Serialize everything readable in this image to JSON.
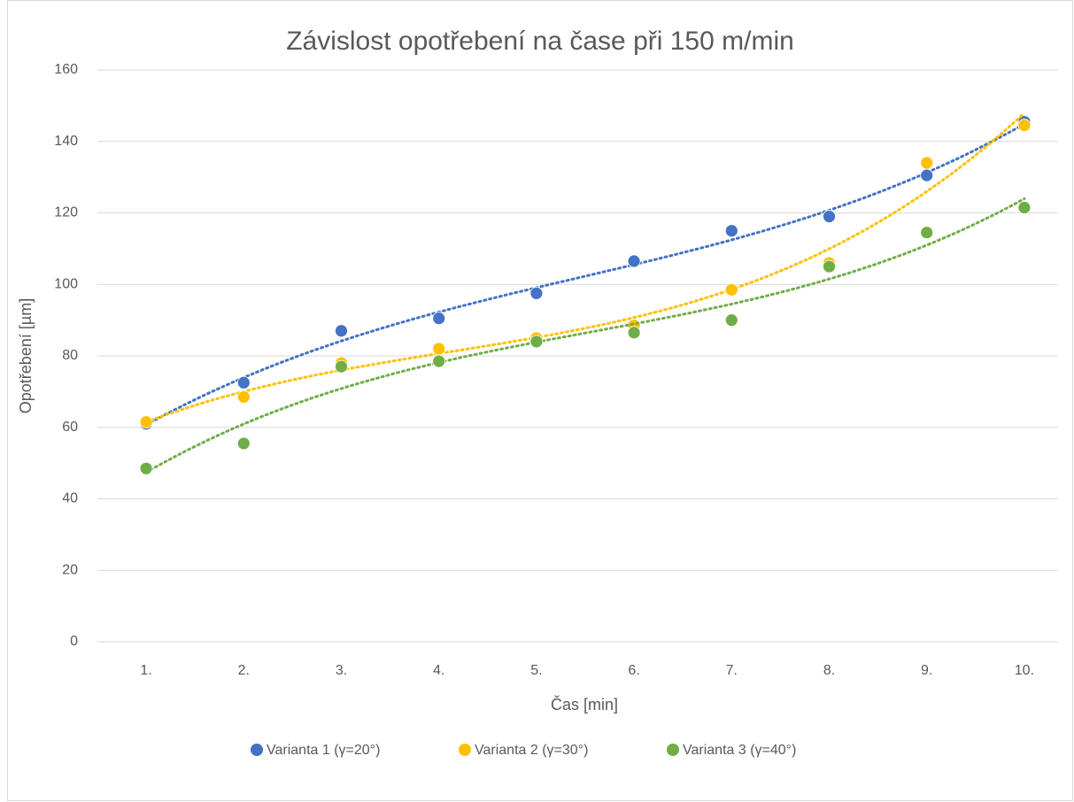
{
  "chart_data": {
    "type": "scatter",
    "title": "Závislost opotřebení na čase při 150 m/min",
    "x_label": "Čas [min]",
    "y_label": "Opotřebení [µm]",
    "categories": [
      "1.",
      "2.",
      "3.",
      "4.",
      "5.",
      "6.",
      "7.",
      "8.",
      "9.",
      "10."
    ],
    "series": [
      {
        "name": "Varianta 1 (γ=20°)",
        "color": "#4472c4",
        "values": [
          61,
          72.5,
          87,
          90.5,
          97.5,
          106.5,
          115,
          119,
          130.5,
          145.5
        ]
      },
      {
        "name": "Varianta 2 (γ=30°)",
        "color": "#ffc000",
        "values": [
          61.5,
          68.5,
          78,
          82,
          85,
          88.5,
          98.5,
          106,
          134,
          144.5
        ]
      },
      {
        "name": "Varianta 3 (γ=40°)",
        "color": "#70ad47",
        "values": [
          48.5,
          55.5,
          77,
          78.5,
          84,
          86.5,
          90,
          105,
          114.5,
          121.5
        ]
      }
    ],
    "ylim": [
      0,
      160
    ],
    "yticks": [
      0,
      20,
      40,
      60,
      80,
      100,
      120,
      140,
      160
    ],
    "grid": true,
    "trendline": "polynomial",
    "legend": "bottom"
  }
}
